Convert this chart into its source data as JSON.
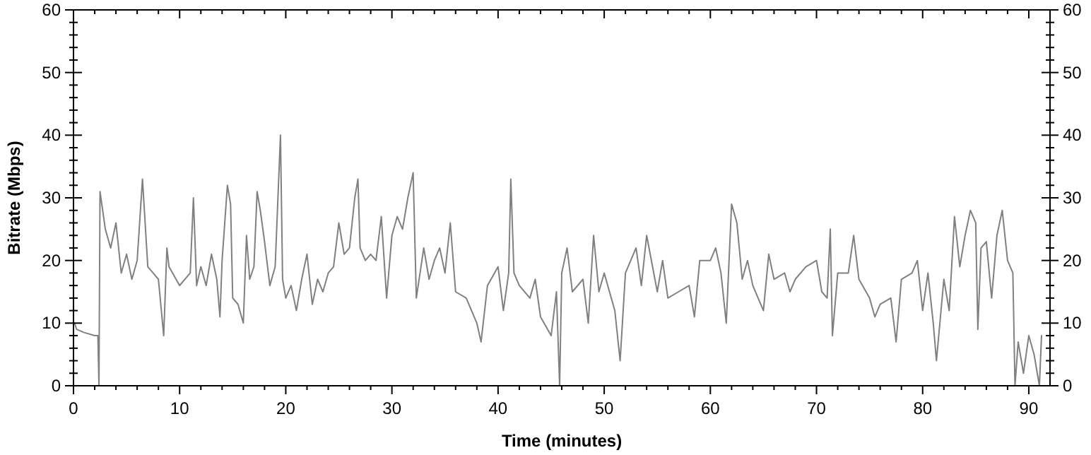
{
  "chart_data": {
    "type": "line",
    "xlabel": "Time (minutes)",
    "ylabel": "Bitrate (Mbps)",
    "xlim": [
      0,
      92
    ],
    "ylim": [
      0,
      60
    ],
    "y2lim": [
      0,
      60
    ],
    "xticks": [
      0,
      {
        "value": 2,
        "label": null
      },
      {
        "value": 4,
        "label": null
      },
      {
        "value": 6,
        "label": null
      },
      {
        "value": 8,
        "label": null
      },
      10,
      {
        "value": 12,
        "label": null
      },
      {
        "value": 14,
        "label": null
      },
      {
        "value": 16,
        "label": null
      },
      {
        "value": 18,
        "label": null
      },
      20,
      {
        "value": 22,
        "label": null
      },
      {
        "value": 24,
        "label": null
      },
      {
        "value": 26,
        "label": null
      },
      {
        "value": 28,
        "label": null
      },
      30,
      {
        "value": 32,
        "label": null
      },
      {
        "value": 34,
        "label": null
      },
      {
        "value": 36,
        "label": null
      },
      {
        "value": 38,
        "label": null
      },
      40,
      {
        "value": 42,
        "label": null
      },
      {
        "value": 44,
        "label": null
      },
      {
        "value": 46,
        "label": null
      },
      {
        "value": 48,
        "label": null
      },
      50,
      {
        "value": 52,
        "label": null
      },
      {
        "value": 54,
        "label": null
      },
      {
        "value": 56,
        "label": null
      },
      {
        "value": 58,
        "label": null
      },
      60,
      {
        "value": 62,
        "label": null
      },
      {
        "value": 64,
        "label": null
      },
      {
        "value": 66,
        "label": null
      },
      {
        "value": 68,
        "label": null
      },
      70,
      {
        "value": 72,
        "label": null
      },
      {
        "value": 74,
        "label": null
      },
      {
        "value": 76,
        "label": null
      },
      {
        "value": 78,
        "label": null
      },
      80,
      {
        "value": 82,
        "label": null
      },
      {
        "value": 84,
        "label": null
      },
      {
        "value": 86,
        "label": null
      },
      {
        "value": 88,
        "label": null
      },
      90
    ],
    "yticks": [
      0,
      {
        "value": 2,
        "label": null
      },
      {
        "value": 4,
        "label": null
      },
      {
        "value": 6,
        "label": null
      },
      {
        "value": 8,
        "label": null
      },
      10,
      {
        "value": 12,
        "label": null
      },
      {
        "value": 14,
        "label": null
      },
      {
        "value": 16,
        "label": null
      },
      {
        "value": 18,
        "label": null
      },
      20,
      {
        "value": 22,
        "label": null
      },
      {
        "value": 24,
        "label": null
      },
      {
        "value": 26,
        "label": null
      },
      {
        "value": 28,
        "label": null
      },
      30,
      {
        "value": 32,
        "label": null
      },
      {
        "value": 34,
        "label": null
      },
      {
        "value": 36,
        "label": null
      },
      {
        "value": 38,
        "label": null
      },
      40,
      {
        "value": 42,
        "label": null
      },
      {
        "value": 44,
        "label": null
      },
      {
        "value": 46,
        "label": null
      },
      {
        "value": 48,
        "label": null
      },
      50,
      {
        "value": 52,
        "label": null
      },
      {
        "value": 54,
        "label": null
      },
      {
        "value": 56,
        "label": null
      },
      {
        "value": 58,
        "label": null
      },
      60
    ],
    "y2ticks": [
      0,
      {
        "value": 2,
        "label": null
      },
      {
        "value": 4,
        "label": null
      },
      {
        "value": 6,
        "label": null
      },
      {
        "value": 8,
        "label": null
      },
      10,
      {
        "value": 12,
        "label": null
      },
      {
        "value": 14,
        "label": null
      },
      {
        "value": 16,
        "label": null
      },
      {
        "value": 18,
        "label": null
      },
      20,
      {
        "value": 22,
        "label": null
      },
      {
        "value": 24,
        "label": null
      },
      {
        "value": 26,
        "label": null
      },
      {
        "value": 28,
        "label": null
      },
      30,
      {
        "value": 32,
        "label": null
      },
      {
        "value": 34,
        "label": null
      },
      {
        "value": 36,
        "label": null
      },
      {
        "value": 38,
        "label": null
      },
      40,
      {
        "value": 42,
        "label": null
      },
      {
        "value": 44,
        "label": null
      },
      {
        "value": 46,
        "label": null
      },
      {
        "value": 48,
        "label": null
      },
      50,
      {
        "value": 52,
        "label": null
      },
      {
        "value": 54,
        "label": null
      },
      {
        "value": 56,
        "label": null
      },
      {
        "value": 58,
        "label": null
      },
      60
    ],
    "grid": false,
    "marker": "none",
    "line_style": "solid",
    "series": [
      {
        "color": "#808080",
        "x": [
          0.1,
          0.3,
          1,
          2,
          2.3,
          2.4,
          2.5,
          3,
          3.5,
          4,
          4.5,
          5,
          5.5,
          6,
          6.5,
          7,
          7.5,
          8,
          8.5,
          8.8,
          9,
          10,
          11,
          11.3,
          11.6,
          12,
          12.5,
          13,
          13.5,
          13.8,
          14,
          14.5,
          14.8,
          15,
          15.5,
          16,
          16.3,
          16.6,
          17,
          17.3,
          17.6,
          18,
          18.5,
          19,
          19.5,
          19.7,
          20,
          20.5,
          21,
          21.5,
          22,
          22.5,
          23,
          23.5,
          24,
          24.5,
          25,
          25.5,
          26,
          26.5,
          26.8,
          27,
          27.5,
          28,
          28.5,
          29,
          29.5,
          30,
          30.5,
          31,
          31.5,
          32,
          32.3,
          33,
          33.5,
          34,
          34.5,
          35,
          35.5,
          36,
          37,
          38,
          38.4,
          39,
          40,
          40.5,
          41,
          41.2,
          41.5,
          42,
          43,
          43.5,
          44,
          45,
          45.5,
          45.8,
          46,
          46.5,
          47,
          48,
          48.5,
          49,
          49.5,
          50,
          51,
          51.5,
          52,
          53,
          53.5,
          54,
          55,
          55.5,
          56,
          57,
          58,
          58.5,
          59,
          60,
          60.5,
          61,
          61.5,
          62,
          62.5,
          63,
          63.5,
          64,
          65,
          65.5,
          66,
          67,
          67.5,
          68,
          69,
          70,
          70.5,
          71,
          71.3,
          71.5,
          72,
          73,
          73.5,
          74,
          75,
          75.5,
          76,
          77,
          77.5,
          78,
          79,
          79.5,
          80,
          80.5,
          81,
          81.3,
          82,
          82.5,
          83,
          83.5,
          84,
          84.5,
          85,
          85.2,
          85.5,
          86,
          86.5,
          87,
          87.5,
          88,
          88.5,
          88.7,
          89,
          89.5,
          90,
          90.5,
          91,
          91.2
        ],
        "values": [
          10,
          9,
          8.5,
          8,
          8,
          0,
          31,
          25,
          22,
          26,
          18,
          21,
          17,
          20,
          33,
          19,
          18,
          17,
          8,
          22,
          19,
          16,
          18,
          30,
          16,
          19,
          16,
          21,
          17,
          11,
          20,
          32,
          29,
          14,
          13,
          10,
          24,
          17,
          19,
          31,
          28,
          23,
          16,
          19,
          40,
          17,
          14,
          16,
          12,
          17,
          21,
          13,
          17,
          15,
          18,
          19,
          26,
          21,
          22,
          30,
          33,
          22,
          20,
          21,
          20,
          27,
          14,
          24,
          27,
          25,
          30,
          34,
          14,
          22,
          17,
          20,
          22,
          18,
          26,
          15,
          14,
          10,
          7,
          16,
          19,
          12,
          18,
          33,
          18,
          16,
          14,
          17,
          11,
          8,
          15,
          0,
          18,
          22,
          15,
          17,
          10,
          24,
          15,
          18,
          12,
          4,
          18,
          22,
          16,
          24,
          15,
          20,
          14,
          15,
          16,
          11,
          20,
          20,
          22,
          18,
          10,
          29,
          26,
          17,
          20,
          16,
          12,
          21,
          17,
          18,
          15,
          17,
          19,
          20,
          15,
          14,
          25,
          8,
          18,
          18,
          24,
          17,
          14,
          11,
          13,
          14,
          7,
          17,
          18,
          20,
          12,
          18,
          10,
          4,
          17,
          12,
          27,
          19,
          24,
          28,
          26,
          9,
          22,
          23,
          14,
          24,
          28,
          20,
          18,
          0,
          7,
          2,
          8,
          5,
          0,
          8
        ]
      }
    ]
  }
}
